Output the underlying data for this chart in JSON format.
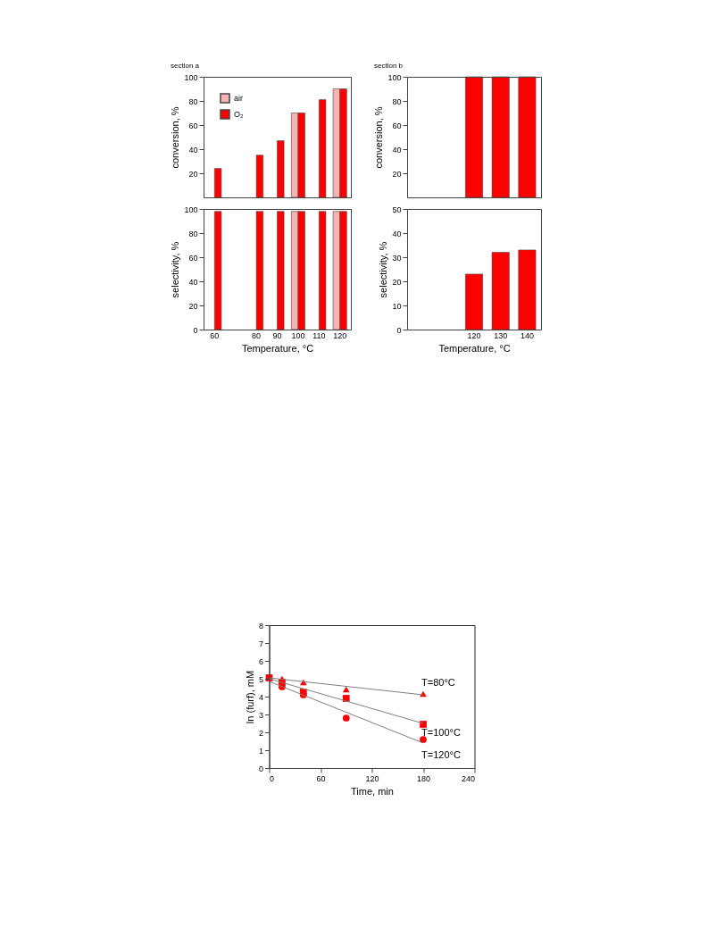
{
  "chart_data": [
    {
      "type": "bar",
      "title": "section a",
      "ylabel": "conversion, %",
      "categories": [
        "60",
        null,
        "80",
        "90",
        "100",
        "110",
        "120"
      ],
      "series": [
        {
          "name": "air",
          "color": "#f5b3b3",
          "values": [
            null,
            null,
            null,
            null,
            70,
            null,
            90
          ]
        },
        {
          "name": "O₂",
          "color": "#ff0000",
          "values": [
            24,
            null,
            35,
            47,
            70,
            81,
            90
          ]
        }
      ],
      "ylim": [
        0,
        100
      ],
      "yticks": [
        20,
        40,
        60,
        80,
        100
      ],
      "legend": "top left",
      "tick_labels": "y"
    },
    {
      "type": "bar",
      "title": "section b",
      "ylabel": "conversion, %",
      "categories": [
        null,
        null,
        "120",
        "130",
        "140"
      ],
      "series": [
        {
          "color": "#ff0000",
          "values": [
            null,
            null,
            100,
            100,
            100
          ]
        }
      ],
      "ylim": [
        0,
        100
      ],
      "yticks": [
        20,
        40,
        60,
        80,
        100
      ],
      "tick_labels": "y"
    },
    {
      "type": "bar",
      "ylabel": "selectivity, %",
      "xlabel": "Temperature, °C",
      "categories": [
        "60",
        null,
        "80",
        "90",
        "100",
        "110",
        "120"
      ],
      "series": [
        {
          "color": "#f5b3b3",
          "values": [
            null,
            null,
            null,
            null,
            98,
            null,
            98
          ]
        },
        {
          "color": "#ff0000",
          "values": [
            98,
            null,
            98,
            98,
            98,
            98,
            98
          ]
        }
      ],
      "ylim": [
        0,
        100
      ],
      "yticks": [
        0,
        20,
        40,
        60,
        80,
        100
      ]
    },
    {
      "type": "bar",
      "ylabel": "selectivity, %",
      "xlabel": "Temperature, °C",
      "categories": [
        null,
        null,
        "120",
        "130",
        "140"
      ],
      "series": [
        {
          "color": "#ff0000",
          "values": [
            null,
            null,
            23,
            32,
            33
          ]
        }
      ],
      "ylim": [
        0,
        50
      ],
      "yticks": [
        0,
        10,
        20,
        30,
        40,
        50
      ]
    },
    {
      "type": "scatter",
      "xlabel": "Time, min",
      "ylabel": "ln (furf), mM",
      "xlim": [
        0,
        240
      ],
      "xticks": [
        0,
        60,
        120,
        180,
        240
      ],
      "ylim": [
        0,
        8
      ],
      "yticks": [
        0,
        1,
        2,
        3,
        4,
        5,
        6,
        7,
        8
      ],
      "grid": false,
      "legend": false,
      "series": [
        {
          "name": "T=80°C",
          "type": "scatter",
          "marker": "triangle",
          "color": "#ff0000",
          "x": [
            15,
            40,
            90,
            180
          ],
          "values": [
            5.0,
            4.8,
            4.4,
            4.15
          ]
        },
        {
          "name": "T=100°C",
          "type": "scatter",
          "marker": "square",
          "color": "#ff0000",
          "x": [
            0,
            15,
            40,
            90,
            180
          ],
          "values": [
            5.05,
            4.8,
            4.25,
            3.9,
            2.45
          ]
        },
        {
          "name": "T=120°C",
          "type": "scatter",
          "marker": "circle",
          "color": "#ff0000",
          "x": [
            15,
            40,
            90,
            180
          ],
          "values": [
            4.55,
            4.1,
            2.8,
            1.6
          ]
        },
        {
          "type": "line",
          "line_style": "solid",
          "color": "#808080",
          "x": [
            0,
            180
          ],
          "values": [
            5.05,
            4.1
          ]
        },
        {
          "type": "line",
          "line_style": "solid",
          "color": "#808080",
          "x": [
            0,
            180
          ],
          "values": [
            5.0,
            2.5
          ]
        },
        {
          "type": "line",
          "line_style": "solid",
          "color": "#808080",
          "x": [
            0,
            180
          ],
          "values": [
            4.85,
            1.4
          ]
        }
      ]
    }
  ]
}
